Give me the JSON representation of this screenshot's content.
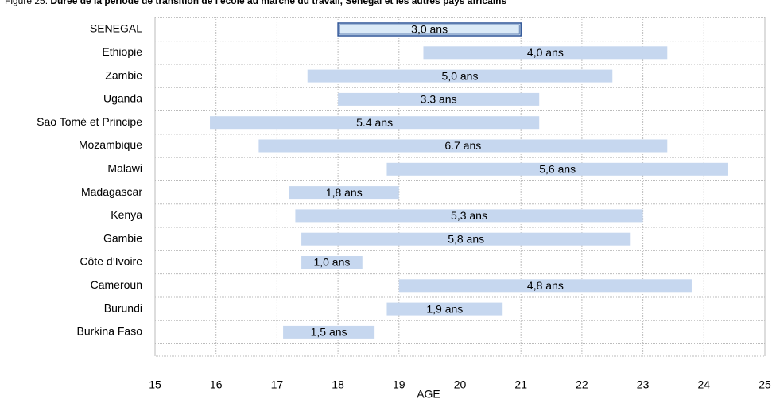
{
  "chart_data": {
    "type": "range_bar",
    "figure_label": "Figure 25:",
    "title": "Durée de la période de transition de l'école au marché du travail, Senegal et les autres pays africains",
    "xlabel": "AGE",
    "categories": [
      "SENEGAL",
      "Ethiopie",
      "Zambie",
      "Uganda",
      "Sao Tomé et Principe",
      "Mozambique",
      "Malawi",
      "Madagascar",
      "Kenya",
      "Gambie",
      "Côte d’Ivoire",
      "Cameroun",
      "Burundi",
      "Burkina Faso"
    ],
    "starts": [
      18,
      19.4,
      17.5,
      18,
      15.9,
      16.7,
      18.8,
      17.2,
      17.3,
      17.4,
      17.4,
      19,
      18.8,
      17.1
    ],
    "ends": [
      21,
      23.4,
      22.5,
      21.3,
      21.3,
      23.4,
      24.4,
      19,
      23,
      22.8,
      18.4,
      23.8,
      20.7,
      18.6
    ],
    "duration_labels": [
      "3,0 ans",
      "4,0 ans",
      "5,0 ans",
      "3.3 ans",
      "5.4 ans",
      "6.7 ans",
      "5,6 ans",
      "1,8 ans",
      "5,3 ans",
      "5,8 ans",
      "1,0 ans",
      "4,8 ans",
      "1,9 ans",
      "1,5 ans"
    ],
    "color": "#c6d7ef",
    "highlight_color": "#dbeaf7",
    "highlight_border": "#2f5597",
    "xlim": [
      15,
      25
    ],
    "xticks": [
      15,
      16,
      17,
      18,
      19,
      20,
      21,
      22,
      23,
      24,
      25
    ],
    "grid": true
  }
}
